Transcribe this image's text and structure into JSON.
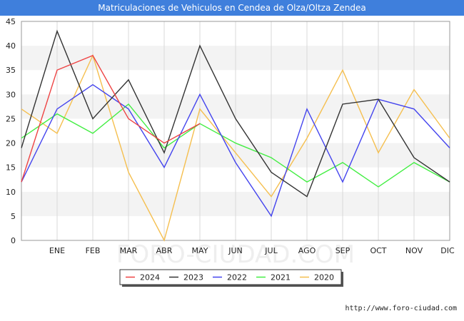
{
  "chart_data": {
    "type": "line",
    "title": "Matriculaciones de Vehiculos en Cendea de Olza/Oltza Zendea",
    "xlabel": "",
    "ylabel": "",
    "ylim": [
      0,
      45
    ],
    "yticks": [
      0,
      5,
      10,
      15,
      20,
      25,
      30,
      35,
      40,
      45
    ],
    "categories": [
      "",
      "ENE",
      "FEB",
      "MAR",
      "ABR",
      "MAY",
      "JUN",
      "JUL",
      "AGO",
      "SEP",
      "OCT",
      "NOV",
      "DIC"
    ],
    "series": [
      {
        "name": "2024",
        "color": "#ee4444",
        "values": [
          12,
          35,
          38,
          25,
          20,
          24,
          null,
          null,
          null,
          null,
          null,
          null,
          null
        ]
      },
      {
        "name": "2023",
        "color": "#333333",
        "values": [
          19,
          43,
          25,
          33,
          18,
          40,
          25,
          14,
          9,
          28,
          29,
          17,
          12
        ]
      },
      {
        "name": "2022",
        "color": "#4444ee",
        "values": [
          12,
          27,
          32,
          27,
          15,
          30,
          16,
          5,
          27,
          12,
          29,
          27,
          19
        ]
      },
      {
        "name": "2021",
        "color": "#44ee44",
        "values": [
          21,
          26,
          22,
          28,
          19,
          24,
          20,
          17,
          12,
          16,
          11,
          16,
          12
        ]
      },
      {
        "name": "2020",
        "color": "#f5bf4f",
        "values": [
          27,
          22,
          38,
          14,
          0,
          27,
          18,
          9,
          21,
          35,
          18,
          31,
          21
        ]
      }
    ],
    "legend_position": "bottom-center",
    "watermark": "FORO-CIUDAD.COM"
  },
  "footer": {
    "url": "http://www.foro-ciudad.com"
  }
}
